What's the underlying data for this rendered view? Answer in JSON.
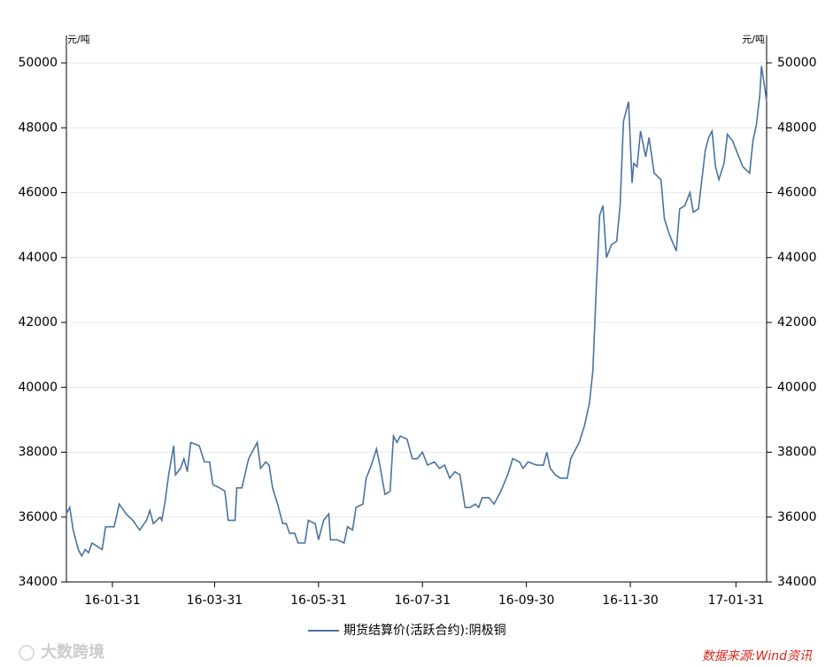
{
  "chart_data": {
    "type": "line",
    "y_unit": "元/吨",
    "y2_unit": "元/吨",
    "source": "数据来源:Wind资讯",
    "watermark": "大数跨境",
    "xlim": [
      "16-01-04",
      "17-02-18"
    ],
    "xticks": [
      "16-01-31",
      "16-03-31",
      "16-05-31",
      "16-07-31",
      "16-09-30",
      "16-11-30",
      "17-01-31"
    ],
    "ylim": [
      34000,
      50000
    ],
    "yticks": [
      34000,
      36000,
      38000,
      40000,
      42000,
      44000,
      46000,
      48000,
      50000
    ],
    "y2lim": [
      34000,
      50000
    ],
    "y2ticks": [
      34000,
      36000,
      38000,
      40000,
      42000,
      44000,
      46000,
      48000,
      50000
    ],
    "grid": true,
    "legend": "bottom",
    "x": [
      "16-01-04",
      "16-01-06",
      "16-01-08",
      "16-01-11",
      "16-01-13",
      "16-01-15",
      "16-01-17",
      "16-01-19",
      "16-01-22",
      "16-01-25",
      "16-01-27",
      "16-02-01",
      "16-02-04",
      "16-02-08",
      "16-02-12",
      "16-02-16",
      "16-02-20",
      "16-02-22",
      "16-02-24",
      "16-02-28",
      "16-02-29",
      "16-03-02",
      "16-03-04",
      "16-03-07",
      "16-03-08",
      "16-03-11",
      "16-03-13",
      "16-03-15",
      "16-03-17",
      "16-03-22",
      "16-03-25",
      "16-03-28",
      "16-03-30",
      "16-04-03",
      "16-04-06",
      "16-04-08",
      "16-04-12",
      "16-04-13",
      "16-04-16",
      "16-04-20",
      "16-04-23",
      "16-04-25",
      "16-04-27",
      "16-04-30",
      "16-05-02",
      "16-05-04",
      "16-05-07",
      "16-05-10",
      "16-05-12",
      "16-05-14",
      "16-05-17",
      "16-05-19",
      "16-05-23",
      "16-05-25",
      "16-05-29",
      "16-05-31",
      "16-06-03",
      "16-06-06",
      "16-06-07",
      "16-06-11",
      "16-06-15",
      "16-06-17",
      "16-06-20",
      "16-06-22",
      "16-06-26",
      "16-06-28",
      "16-07-01",
      "16-07-04",
      "16-07-06",
      "16-07-09",
      "16-07-12",
      "16-07-14",
      "16-07-16",
      "16-07-18",
      "16-07-22",
      "16-07-25",
      "16-07-28",
      "16-07-31",
      "16-08-03",
      "16-08-07",
      "16-08-10",
      "16-08-13",
      "16-08-16",
      "16-08-19",
      "16-08-22",
      "16-08-25",
      "16-08-28",
      "16-08-31",
      "16-09-02",
      "16-09-04",
      "16-09-08",
      "16-09-11",
      "16-09-15",
      "16-09-19",
      "16-09-22",
      "16-09-26",
      "16-09-28",
      "16-10-01",
      "16-10-06",
      "16-10-10",
      "16-10-12",
      "16-10-14",
      "16-10-17",
      "16-10-20",
      "16-10-24",
      "16-10-26",
      "16-10-28",
      "16-10-31",
      "16-11-03",
      "16-11-06",
      "16-11-08",
      "16-11-10",
      "16-11-12",
      "16-11-14",
      "16-11-16",
      "16-11-19",
      "16-11-22",
      "16-11-24",
      "16-11-26",
      "16-11-29",
      "16-12-01",
      "16-12-02",
      "16-12-04",
      "16-12-06",
      "16-12-09",
      "16-12-11",
      "16-12-14",
      "16-12-18",
      "16-12-20",
      "16-12-23",
      "16-12-27",
      "16-12-29",
      "17-01-01",
      "17-01-04",
      "17-01-06",
      "17-01-09",
      "17-01-13",
      "17-01-15",
      "17-01-17",
      "17-01-19",
      "17-01-21",
      "17-01-24",
      "17-01-26",
      "17-01-29",
      "17-02-01",
      "17-02-04",
      "17-02-08",
      "17-02-10",
      "17-02-12",
      "17-02-14",
      "17-02-15",
      "17-02-17",
      "17-02-18"
    ],
    "series": [
      {
        "name": "期货结算价(活跃合约):阴极铜",
        "color": "#4a73a0",
        "values": [
          36100,
          36300,
          35600,
          35000,
          34800,
          35000,
          34900,
          35200,
          35100,
          35000,
          35700,
          35700,
          36400,
          36100,
          35900,
          35600,
          35900,
          36200,
          35800,
          36000,
          35900,
          36500,
          37300,
          38200,
          37300,
          37500,
          37800,
          37400,
          38300,
          38200,
          37700,
          37700,
          37000,
          36900,
          36800,
          35900,
          35900,
          36900,
          36900,
          37800,
          38100,
          38300,
          37500,
          37700,
          37600,
          36900,
          36400,
          35800,
          35800,
          35500,
          35500,
          35200,
          35200,
          35900,
          35800,
          35300,
          35900,
          36100,
          35300,
          35300,
          35200,
          35700,
          35600,
          36300,
          36400,
          37200,
          37600,
          38100,
          37600,
          36700,
          36800,
          38500,
          38300,
          38500,
          38400,
          37800,
          37800,
          38000,
          37600,
          37700,
          37500,
          37600,
          37200,
          37400,
          37300,
          36300,
          36300,
          36400,
          36300,
          36600,
          36600,
          36400,
          36800,
          37300,
          37800,
          37700,
          37500,
          37700,
          37600,
          37600,
          38000,
          37500,
          37300,
          37200,
          37200,
          37800,
          38000,
          38300,
          38800,
          39500,
          40500,
          43000,
          45300,
          45600,
          44000,
          44400,
          44500,
          45600,
          48200,
          48800,
          46300,
          46900,
          46800,
          47900,
          47100,
          47700,
          46600,
          46400,
          45200,
          44700,
          44200,
          45500,
          45600,
          46000,
          45400,
          45500,
          47300,
          47700,
          47900,
          46800,
          46400,
          46900,
          47800,
          47600,
          47200,
          46800,
          46600,
          47600,
          48100,
          49000,
          49900,
          49200,
          48800
        ]
      }
    ]
  }
}
